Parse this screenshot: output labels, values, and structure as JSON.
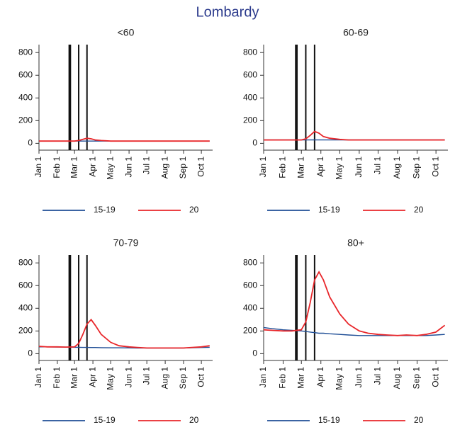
{
  "title": "Lombardy",
  "chart_data": [
    {
      "type": "line",
      "title": "<60",
      "x": [
        "Jan 1",
        "Jan 15",
        "Feb 1",
        "Feb 15",
        "Mar 1",
        "Mar 8",
        "Mar 15",
        "Mar 22",
        "Mar 29",
        "Apr 5",
        "Apr 15",
        "May 1",
        "May 15",
        "Jun 1",
        "Jun 15",
        "Jul 1",
        "Jul 15",
        "Aug 1",
        "Aug 15",
        "Sep 1",
        "Sep 15",
        "Oct 1",
        "Oct 15"
      ],
      "xlim": [
        "Jan 1",
        "Oct 20"
      ],
      "xticks": [
        "Jan 1",
        "Feb 1",
        "Mar 1",
        "Apr 1",
        "May 1",
        "Jun 1",
        "Jul 1",
        "Aug 1",
        "Sep 1",
        "Oct 1"
      ],
      "ylim": [
        -60,
        870
      ],
      "yticks": [
        0,
        200,
        400,
        600,
        800
      ],
      "vlines": [
        "Feb 21",
        "Feb 23",
        "Mar 8",
        "Mar 22"
      ],
      "series": [
        {
          "name": "15-19",
          "color": "#1f4e96",
          "values": [
            20,
            20,
            20,
            20,
            20,
            20,
            20,
            20,
            20,
            20,
            20,
            20,
            20,
            20,
            20,
            20,
            20,
            20,
            20,
            20,
            20,
            20,
            20
          ]
        },
        {
          "name": "20",
          "color": "#e8262a",
          "values": [
            20,
            20,
            20,
            20,
            20,
            25,
            35,
            45,
            40,
            30,
            25,
            20,
            20,
            20,
            20,
            20,
            20,
            20,
            20,
            20,
            20,
            20,
            20
          ]
        }
      ]
    },
    {
      "type": "line",
      "title": "60-69",
      "x": [
        "Jan 1",
        "Jan 15",
        "Feb 1",
        "Feb 15",
        "Mar 1",
        "Mar 8",
        "Mar 15",
        "Mar 22",
        "Mar 29",
        "Apr 5",
        "Apr 15",
        "May 1",
        "May 15",
        "Jun 1",
        "Jun 15",
        "Jul 1",
        "Jul 15",
        "Aug 1",
        "Aug 15",
        "Sep 1",
        "Sep 15",
        "Oct 1",
        "Oct 15"
      ],
      "xlim": [
        "Jan 1",
        "Oct 20"
      ],
      "xticks": [
        "Jan 1",
        "Feb 1",
        "Mar 1",
        "Apr 1",
        "May 1",
        "Jun 1",
        "Jul 1",
        "Aug 1",
        "Sep 1",
        "Oct 1"
      ],
      "ylim": [
        -60,
        870
      ],
      "yticks": [
        0,
        200,
        400,
        600,
        800
      ],
      "vlines": [
        "Feb 21",
        "Feb 23",
        "Mar 8",
        "Mar 22"
      ],
      "series": [
        {
          "name": "15-19",
          "color": "#1f4e96",
          "values": [
            30,
            30,
            30,
            30,
            30,
            30,
            30,
            30,
            30,
            30,
            30,
            30,
            30,
            30,
            30,
            30,
            30,
            30,
            30,
            30,
            30,
            30,
            30
          ]
        },
        {
          "name": "20",
          "color": "#e8262a",
          "values": [
            30,
            30,
            30,
            30,
            30,
            40,
            70,
            105,
            90,
            60,
            45,
            35,
            30,
            30,
            30,
            30,
            30,
            30,
            30,
            30,
            30,
            30,
            30
          ]
        }
      ]
    },
    {
      "type": "line",
      "title": "70-79",
      "x": [
        "Jan 1",
        "Jan 15",
        "Feb 1",
        "Feb 15",
        "Mar 1",
        "Mar 8",
        "Mar 15",
        "Mar 22",
        "Mar 29",
        "Apr 5",
        "Apr 15",
        "May 1",
        "May 15",
        "Jun 1",
        "Jun 15",
        "Jul 1",
        "Jul 15",
        "Aug 1",
        "Aug 15",
        "Sep 1",
        "Sep 15",
        "Oct 1",
        "Oct 15"
      ],
      "xlim": [
        "Jan 1",
        "Oct 20"
      ],
      "xticks": [
        "Jan 1",
        "Feb 1",
        "Mar 1",
        "Apr 1",
        "May 1",
        "Jun 1",
        "Jul 1",
        "Aug 1",
        "Sep 1",
        "Oct 1"
      ],
      "ylim": [
        -60,
        870
      ],
      "yticks": [
        0,
        200,
        400,
        600,
        800
      ],
      "vlines": [
        "Feb 21",
        "Feb 23",
        "Mar 8",
        "Mar 22"
      ],
      "series": [
        {
          "name": "15-19",
          "color": "#1f4e96",
          "values": [
            60,
            60,
            58,
            58,
            56,
            56,
            55,
            55,
            54,
            54,
            53,
            52,
            52,
            51,
            50,
            50,
            50,
            50,
            50,
            50,
            52,
            54,
            56
          ]
        },
        {
          "name": "20",
          "color": "#e8262a",
          "values": [
            65,
            60,
            60,
            58,
            60,
            90,
            170,
            260,
            300,
            250,
            170,
            100,
            70,
            60,
            55,
            50,
            50,
            50,
            50,
            50,
            55,
            60,
            70
          ]
        }
      ]
    },
    {
      "type": "line",
      "title": "80+",
      "x": [
        "Jan 1",
        "Jan 15",
        "Feb 1",
        "Feb 15",
        "Mar 1",
        "Mar 8",
        "Mar 15",
        "Mar 22",
        "Mar 29",
        "Apr 5",
        "Apr 15",
        "May 1",
        "May 15",
        "Jun 1",
        "Jun 15",
        "Jul 1",
        "Jul 15",
        "Aug 1",
        "Aug 15",
        "Sep 1",
        "Sep 15",
        "Oct 1",
        "Oct 15"
      ],
      "xlim": [
        "Jan 1",
        "Oct 20"
      ],
      "xticks": [
        "Jan 1",
        "Feb 1",
        "Mar 1",
        "Apr 1",
        "May 1",
        "Jun 1",
        "Jul 1",
        "Aug 1",
        "Sep 1",
        "Oct 1"
      ],
      "ylim": [
        -60,
        870
      ],
      "yticks": [
        0,
        200,
        400,
        600,
        800
      ],
      "vlines": [
        "Feb 21",
        "Feb 23",
        "Mar 8",
        "Mar 22"
      ],
      "series": [
        {
          "name": "15-19",
          "color": "#1f4e96",
          "values": [
            230,
            220,
            210,
            205,
            200,
            195,
            190,
            185,
            180,
            180,
            175,
            170,
            165,
            160,
            160,
            160,
            160,
            160,
            160,
            160,
            160,
            165,
            170
          ]
        },
        {
          "name": "20",
          "color": "#e8262a",
          "values": [
            210,
            205,
            200,
            200,
            210,
            280,
            450,
            650,
            720,
            650,
            500,
            350,
            260,
            200,
            180,
            170,
            165,
            160,
            165,
            160,
            170,
            190,
            250
          ]
        }
      ]
    }
  ]
}
